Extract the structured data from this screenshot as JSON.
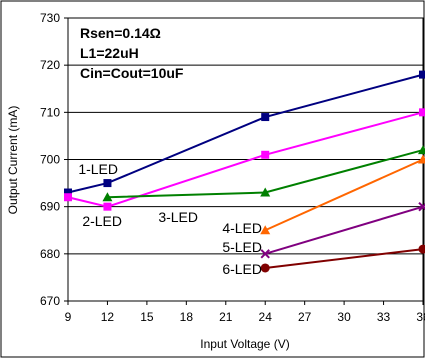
{
  "chart_data": {
    "type": "line",
    "title": "",
    "xlabel": "Input Voltage (V)",
    "ylabel": "Output Current (mA)",
    "xlim": [
      9,
      36
    ],
    "ylim": [
      670,
      730
    ],
    "x_ticks": [
      "9",
      "12",
      "15",
      "18",
      "21",
      "24",
      "27",
      "30",
      "33",
      "36"
    ],
    "y_ticks": [
      "670",
      "680",
      "690",
      "700",
      "710",
      "720",
      "730"
    ],
    "grid": "horizontal",
    "annotations": [
      "Rsen=0.14Ω",
      "L1=22uH",
      "Cin=Cout=10uF"
    ],
    "series": [
      {
        "name": "1-LED",
        "color": "#000080",
        "marker": "square",
        "x": [
          9,
          12,
          24,
          36
        ],
        "values": [
          693,
          695,
          709,
          718
        ]
      },
      {
        "name": "2-LED",
        "color": "#FF00FF",
        "marker": "square",
        "x": [
          9,
          12,
          24,
          36
        ],
        "values": [
          692,
          690,
          701,
          710
        ]
      },
      {
        "name": "3-LED",
        "color": "#008000",
        "marker": "triangle",
        "x": [
          12,
          24,
          36
        ],
        "values": [
          692,
          693,
          702
        ]
      },
      {
        "name": "4-LED",
        "color": "#FF6600",
        "marker": "triangle",
        "x": [
          24,
          36
        ],
        "values": [
          685,
          700
        ]
      },
      {
        "name": "5-LED",
        "color": "#800080",
        "marker": "x",
        "x": [
          24,
          36
        ],
        "values": [
          680,
          690
        ]
      },
      {
        "name": "6-LED",
        "color": "#800000",
        "marker": "circle",
        "x": [
          24,
          36
        ],
        "values": [
          677,
          681
        ]
      }
    ]
  }
}
